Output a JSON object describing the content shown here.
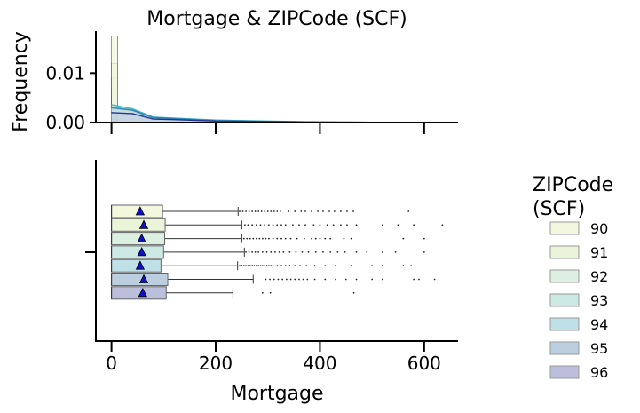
{
  "chart_data": [
    {
      "type": "histogram",
      "title": "Mortgage & ZIPCode (SCF)",
      "xlabel": "",
      "ylabel": "Frequency",
      "xlim": [
        -30,
        665
      ],
      "ylim": [
        0,
        0.0185
      ],
      "yticks": [
        {
          "value": 0.0,
          "label": "0.00"
        },
        {
          "value": 0.01,
          "label": "0.01"
        }
      ],
      "xticks": [
        0,
        200,
        400,
        600
      ],
      "bin_width": 12,
      "histogram": [
        {
          "zip": "96",
          "x0": 0,
          "height": 0.001
        },
        {
          "zip": "95",
          "x0": 0,
          "height": 0.0025
        },
        {
          "zip": "94",
          "x0": 0,
          "height": 0.0045
        },
        {
          "zip": "93",
          "x0": 0,
          "height": 0.007
        },
        {
          "zip": "92",
          "x0": 0,
          "height": 0.009
        },
        {
          "zip": "91",
          "x0": 0,
          "height": 0.012
        },
        {
          "zip": "90",
          "x0": 0,
          "height": 0.0175
        }
      ],
      "kde_series": [
        {
          "zip": "90",
          "x": [
            0,
            40,
            80,
            120,
            200,
            300,
            400,
            500,
            640
          ],
          "y": [
            0.0025,
            0.002,
            0.0008,
            0.0006,
            0.0004,
            0.0002,
            0.0001,
            5e-05,
            0.0
          ]
        },
        {
          "zip": "91",
          "x": [
            0,
            40,
            80,
            120,
            200,
            300,
            400,
            500,
            640
          ],
          "y": [
            0.003,
            0.0024,
            0.0009,
            0.0007,
            0.0004,
            0.0002,
            0.0001,
            5e-05,
            0.0
          ]
        },
        {
          "zip": "92",
          "x": [
            0,
            40,
            80,
            120,
            200,
            300,
            400,
            500,
            640
          ],
          "y": [
            0.0028,
            0.0022,
            0.0008,
            0.0007,
            0.0004,
            0.0002,
            0.0001,
            5e-05,
            0.0
          ]
        },
        {
          "zip": "93",
          "x": [
            0,
            40,
            80,
            120,
            200,
            300,
            400,
            500,
            640
          ],
          "y": [
            0.0032,
            0.0026,
            0.001,
            0.0008,
            0.0005,
            0.0002,
            0.0001,
            5e-05,
            0.0
          ]
        },
        {
          "zip": "94",
          "x": [
            0,
            40,
            80,
            120,
            200,
            300,
            400,
            500,
            640
          ],
          "y": [
            0.0036,
            0.0028,
            0.0011,
            0.0009,
            0.0005,
            0.0003,
            0.0001,
            5e-05,
            0.0
          ]
        },
        {
          "zip": "95",
          "x": [
            0,
            40,
            80,
            120,
            200,
            300,
            400,
            500,
            640
          ],
          "y": [
            0.003,
            0.0025,
            0.001,
            0.0008,
            0.0004,
            0.0002,
            0.0001,
            5e-05,
            0.0
          ]
        },
        {
          "zip": "96",
          "x": [
            0,
            40,
            80,
            120,
            200,
            300,
            400,
            500,
            640
          ],
          "y": [
            0.002,
            0.0018,
            0.0007,
            0.0006,
            0.0003,
            0.0002,
            0.0001,
            5e-05,
            0.0
          ]
        }
      ]
    },
    {
      "type": "box",
      "xlabel": "Mortgage",
      "ylabel": "",
      "xlim": [
        -30,
        665
      ],
      "xticks": [
        0,
        200,
        400,
        600
      ],
      "legend": {
        "title": "ZIPCode\n(SCF)",
        "placement": "right"
      },
      "series": [
        {
          "name": "90",
          "color": "#f3f7de",
          "q1": 0,
          "median": 0,
          "q3": 98,
          "mean": 55,
          "whisker_low": 0,
          "whisker_high": 243,
          "outliers": [
            246,
            252,
            258,
            264,
            270,
            276,
            282,
            288,
            294,
            300,
            306,
            312,
            318,
            324,
            340,
            352,
            364,
            372,
            384,
            396,
            406,
            418,
            428,
            440,
            452,
            464,
            570
          ]
        },
        {
          "name": "91",
          "color": "#e9f4d9",
          "q1": 0,
          "median": 0,
          "q3": 103,
          "mean": 62,
          "whisker_low": 0,
          "whisker_high": 250,
          "outliers": [
            256,
            262,
            270,
            278,
            286,
            294,
            302,
            310,
            318,
            326,
            334,
            348,
            360,
            372,
            388,
            400,
            414,
            426,
            440,
            452,
            470,
            520,
            550,
            580,
            635
          ]
        },
        {
          "name": "92",
          "color": "#dcefe0",
          "q1": 0,
          "median": 0,
          "q3": 102,
          "mean": 58,
          "whisker_low": 0,
          "whisker_high": 250,
          "outliers": [
            254,
            260,
            266,
            272,
            278,
            284,
            290,
            296,
            302,
            310,
            318,
            326,
            334,
            344,
            356,
            370,
            384,
            392,
            400,
            410,
            420,
            446,
            460,
            560,
            600
          ]
        },
        {
          "name": "93",
          "color": "#cde9e4",
          "q1": 0,
          "median": 0,
          "q3": 100,
          "mean": 58,
          "whisker_low": 0,
          "whisker_high": 255,
          "outliers": [
            258,
            264,
            270,
            276,
            282,
            290,
            298,
            306,
            314,
            322,
            330,
            342,
            354,
            366,
            378,
            392,
            406,
            420,
            434,
            448,
            470,
            490,
            520,
            545,
            600
          ]
        },
        {
          "name": "94",
          "color": "#bfe0e6",
          "q1": 0,
          "median": 0,
          "q3": 95,
          "mean": 55,
          "whisker_low": 0,
          "whisker_high": 242,
          "outliers": [
            246,
            250,
            254,
            258,
            262,
            266,
            270,
            274,
            278,
            282,
            286,
            290,
            294,
            298,
            302,
            306,
            310,
            318,
            326,
            334,
            342,
            352,
            362,
            374,
            390,
            410,
            430,
            460,
            500,
            520,
            560,
            575
          ]
        },
        {
          "name": "95",
          "color": "#bccfe1",
          "q1": 0,
          "median": 0,
          "q3": 108,
          "mean": 62,
          "whisker_low": 0,
          "whisker_high": 272,
          "outliers": [
            296,
            304,
            312,
            320,
            328,
            336,
            344,
            352,
            360,
            368,
            376,
            390,
            410,
            430,
            450,
            470,
            500,
            520,
            580,
            590,
            620
          ]
        },
        {
          "name": "96",
          "color": "#bbbfdb",
          "q1": 0,
          "median": 0,
          "q3": 105,
          "mean": 60,
          "whisker_low": 0,
          "whisker_high": 233,
          "outliers": [
            290,
            305,
            465
          ]
        }
      ]
    }
  ]
}
